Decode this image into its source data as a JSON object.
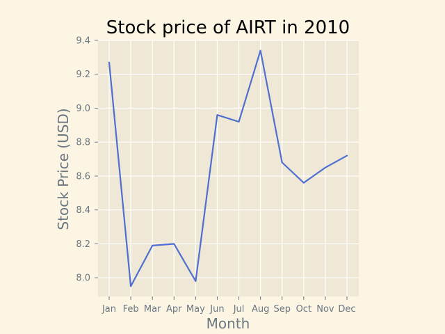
{
  "chart_data": {
    "type": "line",
    "title": "Stock price of AIRT in 2010",
    "xlabel": "Month",
    "ylabel": "Stock Price (USD)",
    "categories": [
      "Jan",
      "Feb",
      "Mar",
      "Apr",
      "May",
      "Jun",
      "Jul",
      "Aug",
      "Sep",
      "Oct",
      "Nov",
      "Dec"
    ],
    "series": [
      {
        "values": [
          9.27,
          7.95,
          8.19,
          8.2,
          7.98,
          8.96,
          8.92,
          9.34,
          8.68,
          8.56,
          8.65,
          8.72
        ]
      }
    ],
    "ylim": [
      7.89,
      9.4
    ],
    "yticks": [
      8.0,
      8.2,
      8.4,
      8.6,
      8.8,
      9.0,
      9.2,
      9.4
    ],
    "ytick_labels": [
      "8.0",
      "8.2",
      "8.4",
      "8.6",
      "8.8",
      "9.0",
      "9.2",
      "9.4"
    ],
    "grid": true,
    "legend": false,
    "colors": {
      "figure_background": "#fcf5e4",
      "plot_background": "#efe8d6",
      "grid": "#ffffff",
      "line": "#4f6fd0",
      "tick_text": "#6a7680",
      "title_text": "#000000"
    }
  }
}
